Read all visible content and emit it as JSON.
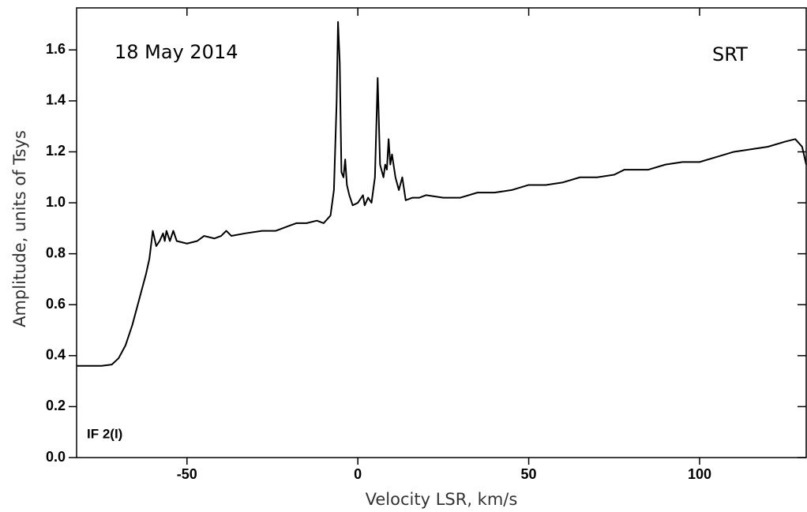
{
  "chart_data": {
    "type": "line",
    "x_label": "Velocity LSR, km/s",
    "y_label": "Amplitude, units of Tsys",
    "annotations": [
      "18 May 2014",
      "SRT",
      "IF 2(I)"
    ],
    "xlim": [
      -82.3,
      131.2
    ],
    "ylim": [
      0,
      1.765
    ],
    "xticks": [
      -50,
      0,
      50,
      100
    ],
    "yticks": [
      {
        "value": 0,
        "label": "0.0"
      },
      0.2,
      0.4,
      0.6,
      0.8,
      {
        "value": 1,
        "label": "1.0"
      },
      1.2,
      1.4,
      1.6
    ],
    "series": [
      {
        "color": "#000000",
        "x": [
          -82.3,
          -75,
          -72,
          -70,
          -68,
          -66,
          -64,
          -63,
          -62,
          -61,
          -60,
          -59,
          -58,
          -57,
          -56.5,
          -56,
          -55,
          -54,
          -53,
          -50,
          -47,
          -45,
          -42,
          -40,
          -38.5,
          -37,
          -33,
          -28,
          -24,
          -20,
          -18,
          -15,
          -12,
          -10,
          -8,
          -7,
          -6.2,
          -5.8,
          -5.3,
          -4.8,
          -4.2,
          -3.7,
          -3.2,
          -2.5,
          -1.5,
          0,
          1.5,
          2,
          3,
          4,
          5,
          5.8,
          6.5,
          7.5,
          8,
          8.5,
          9,
          9.5,
          10,
          11,
          12,
          13,
          14,
          16,
          18,
          20,
          25,
          30,
          35,
          40,
          45,
          50,
          55,
          60,
          65,
          70,
          75,
          78,
          85,
          90,
          95,
          100,
          105,
          110,
          115,
          120,
          125,
          128,
          130,
          131.2
        ],
        "values": [
          0.36,
          0.36,
          0.365,
          0.39,
          0.44,
          0.52,
          0.62,
          0.67,
          0.72,
          0.78,
          0.89,
          0.83,
          0.85,
          0.88,
          0.85,
          0.89,
          0.85,
          0.89,
          0.85,
          0.84,
          0.85,
          0.87,
          0.86,
          0.87,
          0.89,
          0.87,
          0.88,
          0.89,
          0.89,
          0.91,
          0.92,
          0.92,
          0.93,
          0.92,
          0.95,
          1.05,
          1.4,
          1.71,
          1.55,
          1.12,
          1.1,
          1.17,
          1.07,
          1.03,
          0.99,
          1.0,
          1.03,
          0.99,
          1.02,
          1.0,
          1.1,
          1.49,
          1.15,
          1.1,
          1.15,
          1.13,
          1.25,
          1.15,
          1.19,
          1.1,
          1.05,
          1.1,
          1.01,
          1.02,
          1.02,
          1.03,
          1.02,
          1.02,
          1.04,
          1.04,
          1.05,
          1.07,
          1.07,
          1.08,
          1.1,
          1.1,
          1.11,
          1.13,
          1.13,
          1.15,
          1.16,
          1.16,
          1.18,
          1.2,
          1.21,
          1.22,
          1.24,
          1.25,
          1.22,
          1.15
        ]
      }
    ]
  }
}
